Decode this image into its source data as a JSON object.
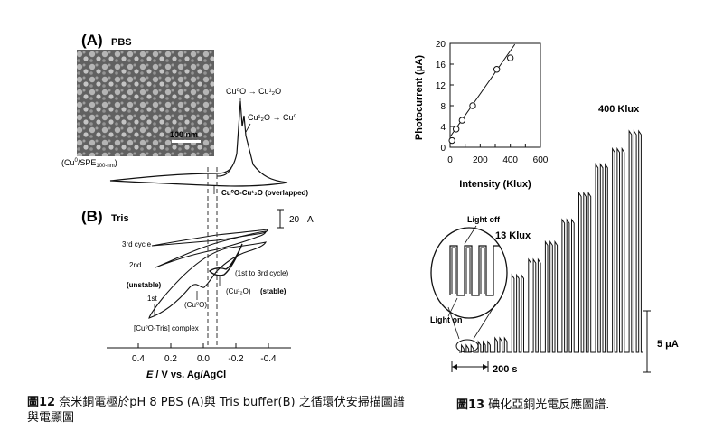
{
  "fig12": {
    "caption_num": "圖12",
    "caption_text": " 奈米銅電極於pH 8 PBS (A)與 Tris buffer(B) 之循環伏安掃描圖譜與電顯圖",
    "panelA_label": "(A)",
    "panelA_buffer": "PBS",
    "panelB_label": "(B)",
    "panelB_buffer": "Tris",
    "sem_scalebar": "100 nm",
    "sem_caption": "(Cu",
    "sem_caption_sup": "0",
    "sem_caption_rest": "/SPE",
    "sem_caption_sub": "100-nm",
    "sem_caption_end": ")",
    "ann_cu0_cu1": "Cu⁰O → Cu¹₂O",
    "ann_cu1_cu0": "Cu¹₂O → Cu⁰",
    "ann_overlap": "Cu⁰O-Cu¹₂O (overlapped)",
    "scale_value": "20",
    "scale_unit": "A",
    "ann_3rd": "3rd cycle",
    "ann_2nd": "2nd",
    "ann_1st": "1st",
    "ann_unstable": "(unstable)",
    "ann_cu0o": "(Cu⁰O)",
    "ann_1to3": "(1st to 3rd cycle)",
    "ann_cu2o": "(Cu¹₂O)",
    "ann_stable": "(stable)",
    "ann_complex": "[Cu⁰O-Tris] complex",
    "x_ticks": [
      "0.4",
      "0.2",
      "0.0",
      "-0.2",
      "-0.4"
    ],
    "x_label_italic": "E",
    "x_label_rest": " / V vs. Ag/AgCl"
  },
  "fig13": {
    "caption_num": "圖13",
    "caption_text": " 碘化亞銅光電反應圖譜.",
    "ylabel": "Photocurrent (μA)",
    "xlabel": "Intensity (Klux)",
    "y_ticks": [
      "0",
      "4",
      "8",
      "12",
      "16",
      "20"
    ],
    "x_ticks": [
      "0",
      "100",
      "200",
      "300",
      "400",
      "500",
      "600"
    ],
    "ann_400": "400 Klux",
    "ann_13": "13 Klux",
    "ann_light_off": "Light off",
    "ann_light_on": "Light on",
    "scale_current": "5 μA",
    "scale_time": "200 s"
  },
  "chart_data": [
    {
      "type": "scatter",
      "xlabel": "Intensity (Klux)",
      "ylabel": "Photocurrent (μA)",
      "xlim": [
        0,
        600
      ],
      "ylim": [
        0,
        20
      ],
      "x": [
        13,
        40,
        80,
        150,
        310,
        400
      ],
      "y": [
        1.3,
        3.5,
        5.2,
        8.0,
        15.0,
        17.2
      ],
      "fit_line": {
        "x": [
          0,
          430
        ],
        "y": [
          2.0,
          19.8
        ]
      }
    },
    {
      "type": "line",
      "annotations": [
        "400 Klux",
        "13 Klux",
        "Light off",
        "Light on",
        "5 μA",
        "200 s"
      ],
      "step_peaks_rel": [
        0.25,
        0.25,
        0.3,
        0.35,
        0.42,
        0.5,
        0.6,
        0.72,
        0.85,
        0.92,
        1.0
      ]
    }
  ]
}
